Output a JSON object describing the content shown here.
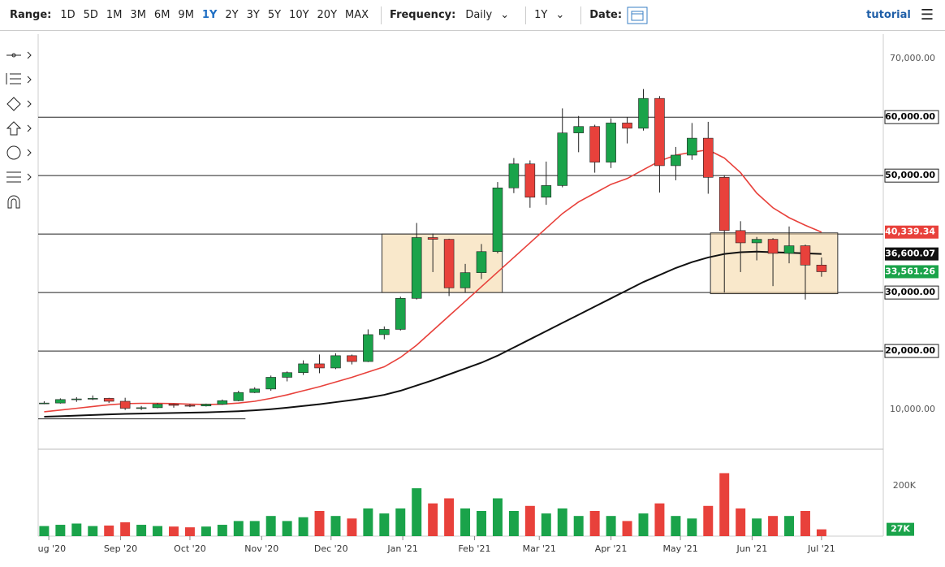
{
  "toolbar": {
    "range_label": "Range:",
    "ranges": [
      "1D",
      "5D",
      "1M",
      "3M",
      "6M",
      "9M",
      "1Y",
      "2Y",
      "3Y",
      "5Y",
      "10Y",
      "20Y",
      "MAX"
    ],
    "active_range": 6,
    "frequency_label": "Frequency:",
    "frequency": "Daily",
    "period": "1Y",
    "date_label": "Date:",
    "tutorial": "tutorial"
  },
  "chart_data": {
    "type": "candlestick",
    "x": [
      -2,
      5,
      12,
      19,
      26,
      33,
      40,
      47,
      54,
      61,
      68,
      75,
      82,
      89,
      96,
      103,
      110,
      117,
      124,
      131,
      138,
      145,
      152,
      159,
      166,
      173,
      180,
      187,
      194,
      201,
      208,
      215,
      222,
      229,
      236,
      243,
      250,
      257,
      264,
      271,
      278,
      285,
      292,
      299,
      306,
      313,
      320,
      327,
      334
    ],
    "open": [
      11000,
      11100,
      11700,
      11800,
      11900,
      11400,
      10200,
      10300,
      10900,
      10700,
      10600,
      10900,
      11500,
      12900,
      13500,
      15500,
      16300,
      17800,
      17100,
      19200,
      18200,
      22800,
      23700,
      29000,
      39400,
      39100,
      30800,
      33400,
      37000,
      47900,
      52000,
      46300,
      48300,
      57300,
      58400,
      52300,
      59000,
      58100,
      63200,
      51700,
      53500,
      56400,
      49700,
      40600,
      38500,
      39100,
      36700,
      38000,
      34700
    ],
    "high": [
      11400,
      11900,
      12100,
      12400,
      12000,
      12000,
      10600,
      11100,
      11000,
      10900,
      11000,
      11700,
      13200,
      13800,
      15800,
      16500,
      18400,
      19400,
      19600,
      19400,
      23700,
      24200,
      29300,
      41900,
      40100,
      39200,
      34900,
      38300,
      48900,
      53000,
      52600,
      52400,
      61500,
      60200,
      58700,
      59800,
      60000,
      64800,
      63600,
      54900,
      59000,
      59200,
      50100,
      42200,
      39500,
      39300,
      41300,
      38200,
      36000
    ],
    "low": [
      10900,
      11000,
      11300,
      11600,
      11100,
      9900,
      9900,
      10200,
      10300,
      10400,
      10500,
      10800,
      11400,
      12800,
      13200,
      14800,
      15900,
      16200,
      16900,
      17700,
      18100,
      22000,
      23500,
      28800,
      33500,
      29400,
      30000,
      32300,
      36700,
      47000,
      44500,
      45000,
      48000,
      54000,
      50500,
      51300,
      55500,
      57700,
      47100,
      49200,
      52700,
      46900,
      30000,
      33500,
      35500,
      31100,
      35000,
      28800,
      32700
    ],
    "close": [
      11100,
      11700,
      11800,
      11900,
      11400,
      10200,
      10300,
      10900,
      10700,
      10600,
      10900,
      11500,
      12900,
      13500,
      15500,
      16300,
      17800,
      17100,
      19200,
      18200,
      22800,
      23700,
      29000,
      39400,
      39100,
      30800,
      33400,
      37000,
      47900,
      52000,
      46300,
      48300,
      57300,
      58400,
      52300,
      59000,
      58100,
      63200,
      51700,
      53500,
      56400,
      49700,
      40600,
      38500,
      39100,
      36700,
      38000,
      34700,
      33561.26
    ],
    "volume": [
      40000,
      45000,
      50000,
      40000,
      42000,
      55000,
      45000,
      40000,
      38000,
      35000,
      38000,
      45000,
      60000,
      60000,
      80000,
      60000,
      75000,
      100000,
      80000,
      70000,
      110000,
      90000,
      110000,
      190000,
      130000,
      150000,
      110000,
      100000,
      150000,
      100000,
      120000,
      90000,
      110000,
      80000,
      100000,
      80000,
      60000,
      90000,
      130000,
      80000,
      70000,
      120000,
      250000,
      110000,
      70000,
      80000,
      80000,
      100000,
      27000
    ],
    "up_color": "#1aa34a",
    "down_color": "#e8413b",
    "ma_lines": [
      {
        "color": "#e8413b",
        "values": [
          9600,
          9900,
          10200,
          10500,
          10800,
          11000,
          11050,
          11050,
          11000,
          10900,
          10850,
          10900,
          11100,
          11400,
          11900,
          12500,
          13200,
          13900,
          14700,
          15500,
          16400,
          17300,
          18900,
          21000,
          23500,
          26000,
          28500,
          31000,
          33500,
          36000,
          38500,
          41000,
          43500,
          45500,
          47000,
          48500,
          49500,
          51000,
          52500,
          53500,
          54000,
          54400,
          53000,
          50500,
          47000,
          44500,
          42800,
          41500,
          40339.34
        ]
      },
      {
        "color": "#111111",
        "values": [
          8750,
          8850,
          8950,
          9050,
          9150,
          9250,
          9300,
          9350,
          9400,
          9450,
          9500,
          9600,
          9700,
          9850,
          10050,
          10300,
          10600,
          10900,
          11250,
          11600,
          12000,
          12500,
          13200,
          14100,
          15000,
          16000,
          17000,
          18000,
          19200,
          20600,
          22000,
          23400,
          24800,
          26200,
          27600,
          29000,
          30400,
          31800,
          33000,
          34200,
          35200,
          36000,
          36600,
          36900,
          37000,
          36900,
          36800,
          36700,
          36600.07
        ]
      }
    ],
    "hlines": [
      20000,
      30000,
      40000,
      50000,
      60000
    ],
    "trendline": {
      "x": [
        -4.6,
        85
      ],
      "y": [
        8400,
        8400
      ]
    },
    "boxes": [
      {
        "x": [
          144,
          196
        ],
        "y": [
          30000,
          40000
        ]
      },
      {
        "x": [
          286,
          341
        ],
        "y": [
          29800,
          40200
        ]
      }
    ],
    "price_labels": [
      {
        "value": 40339.34,
        "label": "40,339.34",
        "color": "#e8413b"
      },
      {
        "value": 36600.07,
        "label": "36,600.07",
        "color": "#111111"
      },
      {
        "value": 33561.26,
        "label": "33,561.26",
        "color": "#1aa34a"
      }
    ],
    "xlim": [
      -4.6,
      360.7
    ],
    "xticks": [
      {
        "value": 0,
        "label": "Aug '20"
      },
      {
        "value": 31,
        "label": "Sep '20"
      },
      {
        "value": 61,
        "label": "Oct '20"
      },
      {
        "value": 92,
        "label": "Nov '20"
      },
      {
        "value": 122,
        "label": "Dec '20"
      },
      {
        "value": 153,
        "label": "Jan '21"
      },
      {
        "value": 184,
        "label": "Feb '21"
      },
      {
        "value": 212,
        "label": "Mar '21"
      },
      {
        "value": 243,
        "label": "Apr '21"
      },
      {
        "value": 273,
        "label": "May '21"
      },
      {
        "value": 304,
        "label": "Jun '21"
      },
      {
        "value": 334,
        "label": "Jul '21"
      }
    ],
    "ylim": [
      3200,
      74200
    ],
    "yticks": [
      {
        "value": 10000,
        "label": "10,000.00"
      },
      {
        "value": 20000,
        "label": "20,000.00"
      },
      {
        "value": 30000,
        "label": "30,000.00"
      },
      {
        "value": 50000,
        "label": "50,000.00"
      },
      {
        "value": 60000,
        "label": "60,000.00"
      },
      {
        "value": 70000,
        "label": "70,000.00"
      }
    ],
    "vlim": [
      0,
      345000
    ],
    "vticks": [
      {
        "value": 200000,
        "label": "200K"
      }
    ],
    "volume_label": {
      "value": 27000,
      "label": "27K",
      "color": "#1aa34a"
    }
  }
}
